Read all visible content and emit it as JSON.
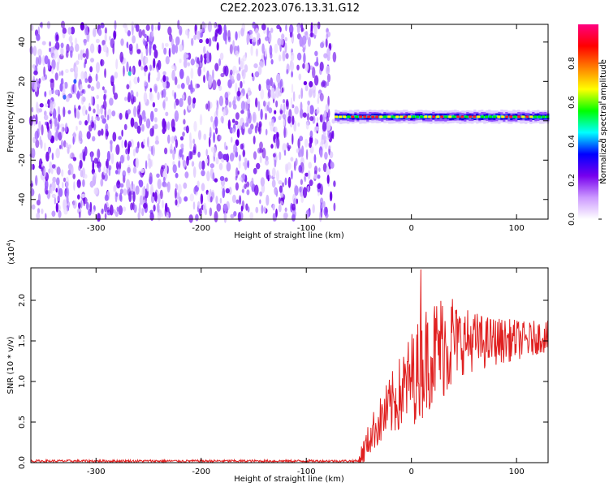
{
  "title": "C2E2.2023.076.13.31.G12",
  "chart_data": [
    {
      "type": "heatmap",
      "xlabel": "Height of straight line (km)",
      "ylabel": "Frequency (Hz)",
      "xlim": [
        -362,
        130
      ],
      "ylim": [
        -50,
        49
      ],
      "x_ticks": [
        -300,
        -200,
        -100,
        0,
        100
      ],
      "x_tick_labels": [
        "-300",
        "-200",
        "-100",
        "0",
        "100"
      ],
      "y_ticks": [
        -40,
        -20,
        0,
        20,
        40
      ],
      "y_tick_labels": [
        "-40",
        "-20",
        "0",
        "20",
        "40"
      ],
      "noise_region_x": [
        -362,
        -73
      ],
      "signal_start_x": -73,
      "signal_freq_hz": 2,
      "colorbar": {
        "label": "Normalized spectral amplitude",
        "range": [
          0,
          1
        ],
        "ticks": [
          0.0,
          0.2,
          0.4,
          0.6,
          0.8
        ],
        "tick_labels": [
          "0.0",
          "0.2",
          "0.4",
          "0.6",
          "0.8"
        ],
        "colors": [
          "#ffffff",
          "#cc99ff",
          "#7700ee",
          "#0000ff",
          "#00ffff",
          "#00ff00",
          "#ffff00",
          "#ff8000",
          "#ff0000",
          "#ff0080"
        ]
      }
    },
    {
      "type": "line",
      "xlabel": "Height of straight line (km)",
      "ylabel": "SNR (10 * v/v)",
      "y_multiplier_label": "(x10",
      "y_multiplier_exp": "4",
      "y_multiplier_close": ")",
      "xlim": [
        -362,
        130
      ],
      "ylim": [
        0,
        2.4
      ],
      "x_ticks": [
        -300,
        -200,
        -100,
        0,
        100
      ],
      "x_tick_labels": [
        "-300",
        "-200",
        "-100",
        "0",
        "100"
      ],
      "y_ticks": [
        0.0,
        0.5,
        1.0,
        1.5,
        2.0
      ],
      "y_tick_labels": [
        "0.0",
        "0.5",
        "1.0",
        "1.5",
        "2.0"
      ],
      "line_color": "#e02020",
      "trend": {
        "x": [
          -362,
          -50,
          -45,
          -40,
          -35,
          -30,
          -25,
          -20,
          -15,
          -10,
          -5,
          0,
          5,
          10,
          15,
          20,
          25,
          30,
          40,
          50,
          60,
          70,
          80,
          90,
          100,
          110,
          120,
          130
        ],
        "y": [
          0.02,
          0.02,
          0.15,
          0.3,
          0.42,
          0.5,
          0.6,
          0.68,
          0.78,
          0.85,
          0.95,
          1.05,
          1.1,
          1.2,
          1.3,
          1.35,
          1.4,
          1.45,
          1.5,
          1.5,
          1.5,
          1.48,
          1.5,
          1.5,
          1.52,
          1.5,
          1.55,
          1.55
        ]
      },
      "peak": {
        "x": 9,
        "y": 2.38
      }
    }
  ]
}
